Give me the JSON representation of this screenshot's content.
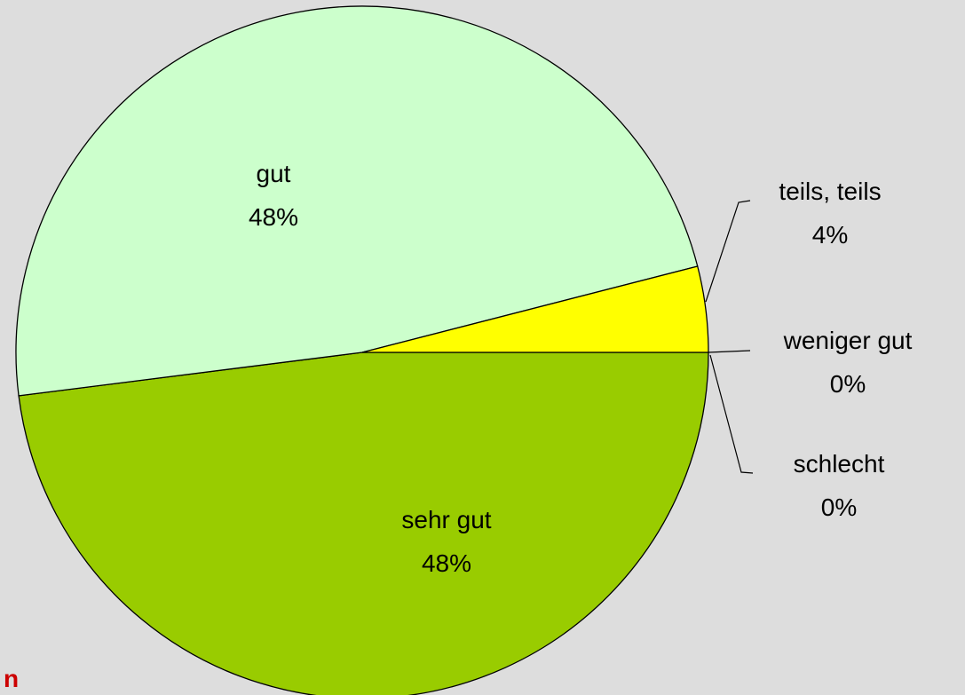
{
  "chart_data": {
    "type": "pie",
    "categories": [
      "sehr gut",
      "gut",
      "teils, teils",
      "weniger gut",
      "schlecht"
    ],
    "values": [
      48,
      48,
      4,
      0,
      0
    ],
    "value_labels": [
      "48%",
      "48%",
      "4%",
      "0%",
      "0%"
    ],
    "colors": [
      "#99cc00",
      "#ccffcc",
      "#ffff00",
      null,
      null
    ],
    "annotation": "n"
  }
}
